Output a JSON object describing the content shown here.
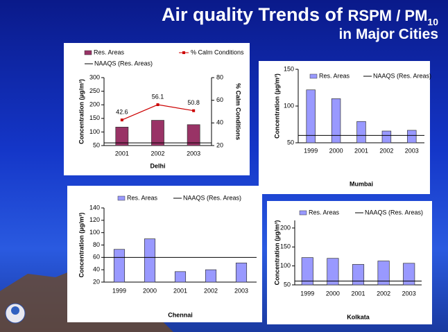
{
  "slide": {
    "title": [
      "Air quality Trends of ",
      "RSPM / PM",
      "10",
      "in Major Cities"
    ]
  },
  "chart_data": [
    {
      "type": "bar",
      "xlabel": "Delhi",
      "ylabel": "Concentration (µg/m³)",
      "y2label": "% Calm Conditions",
      "categories": [
        "2001",
        "2002",
        "2003"
      ],
      "series": [
        {
          "name": "Res. Areas",
          "color": "#993366",
          "values": [
            118,
            143,
            127
          ]
        },
        {
          "name": "% Calm Conditions",
          "color": "#cc0000",
          "axis": "y2",
          "values": [
            42.6,
            56.1,
            50.8
          ]
        }
      ],
      "naaqs": {
        "name": "NAAQS (Res. Areas)",
        "value": 60
      },
      "ylim": [
        50,
        300
      ],
      "yticks": [
        50,
        100,
        150,
        200,
        250,
        300
      ],
      "y2lim": [
        20,
        80
      ],
      "y2ticks": [
        20,
        40,
        60,
        80
      ]
    },
    {
      "type": "bar",
      "xlabel": "Mumbai",
      "ylabel": "Concentration (µg/m³)",
      "categories": [
        "1999",
        "2000",
        "2001",
        "2002",
        "2003"
      ],
      "series": [
        {
          "name": "Res. Areas",
          "color": "#9999ff",
          "values": [
            122,
            110,
            79,
            66,
            67
          ]
        }
      ],
      "naaqs": {
        "name": "NAAQS (Res. Areas)",
        "value": 60
      },
      "ylim": [
        50,
        150
      ],
      "yticks": [
        50,
        100,
        150
      ]
    },
    {
      "type": "bar",
      "xlabel": "Chennai",
      "ylabel": "Concentration (µg/m³)",
      "categories": [
        "1999",
        "2000",
        "2001",
        "2002",
        "2003"
      ],
      "series": [
        {
          "name": "Res. Areas",
          "color": "#9999ff",
          "values": [
            73,
            90,
            37,
            40,
            51
          ]
        }
      ],
      "naaqs": {
        "name": "NAAQS (Res. Areas)",
        "value": 60
      },
      "ylim": [
        20,
        140
      ],
      "yticks": [
        20,
        40,
        60,
        80,
        100,
        120,
        140
      ]
    },
    {
      "type": "bar",
      "xlabel": "Kolkata",
      "ylabel": "Concentration (µg/m³)",
      "categories": [
        "1999",
        "2000",
        "2001",
        "2002",
        "2003"
      ],
      "series": [
        {
          "name": "Res. Areas",
          "color": "#9999ff",
          "values": [
            122,
            120,
            104,
            113,
            107
          ]
        }
      ],
      "naaqs": {
        "name": "NAAQS (Res. Areas)",
        "value": 60
      },
      "ylim": [
        50,
        220
      ],
      "yticks": [
        50,
        100,
        150,
        200
      ]
    }
  ]
}
